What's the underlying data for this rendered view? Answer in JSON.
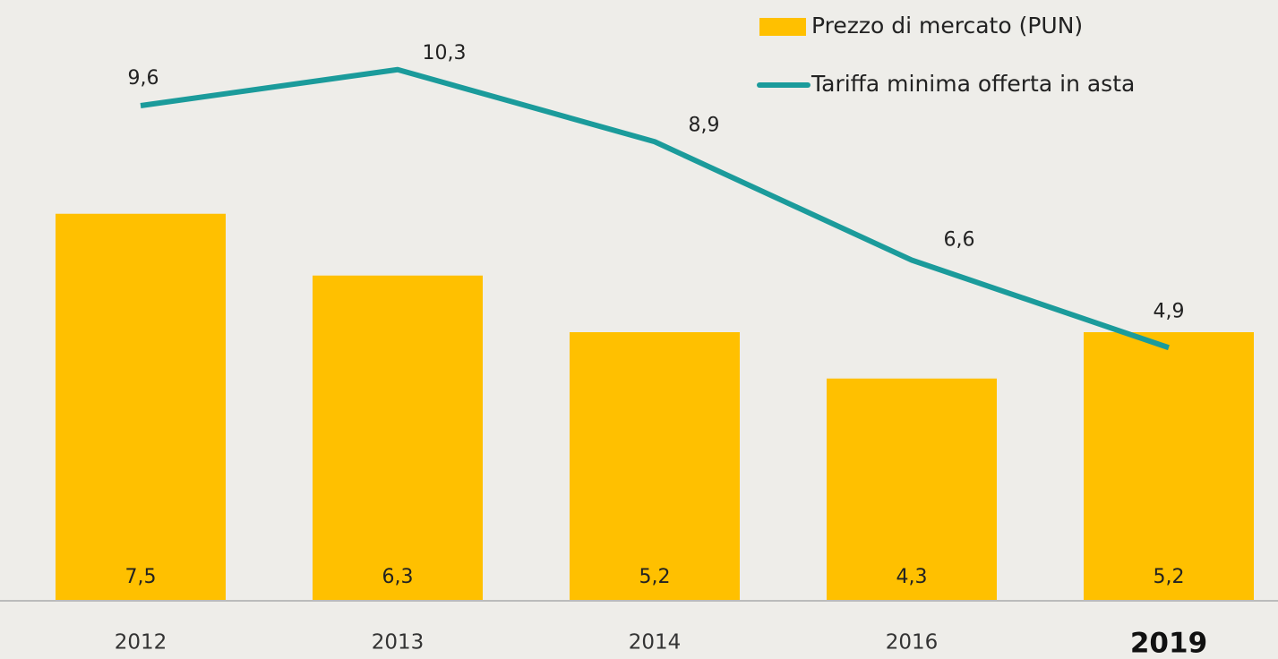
{
  "chart_data": {
    "type": "bar-line",
    "categories": [
      "2012",
      "2013",
      "2014",
      "2016",
      "2019"
    ],
    "series": [
      {
        "name": "Prezzo di mercato (PUN)",
        "type": "bar",
        "color": "#ffc000",
        "values": [
          7.5,
          6.3,
          5.2,
          4.3,
          5.2
        ],
        "value_labels": [
          "7,5",
          "6,3",
          "5,2",
          "4,3",
          "5,2"
        ]
      },
      {
        "name": "Tariffa minima offerta in asta",
        "type": "line",
        "color": "#1b9b9b",
        "values": [
          9.6,
          10.3,
          8.9,
          6.6,
          4.9
        ],
        "value_labels": [
          "9,6",
          "10,3",
          "8,9",
          "6,6",
          "4,9"
        ]
      }
    ],
    "ylim": [
      0,
      11.6
    ]
  }
}
